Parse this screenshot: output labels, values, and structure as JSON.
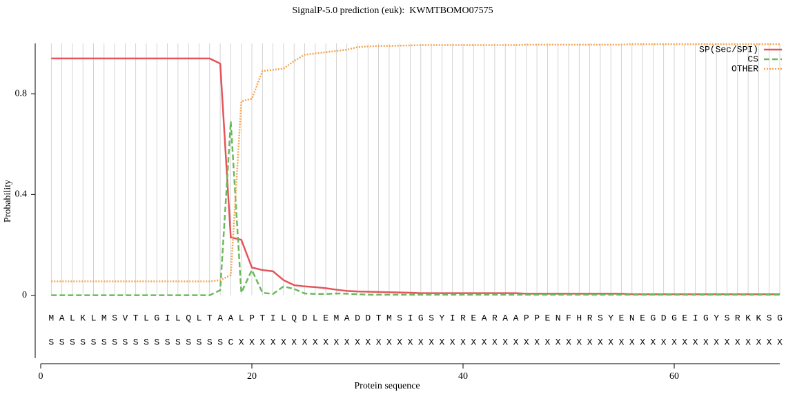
{
  "chart_data": {
    "type": "line",
    "title": "SignalP-5.0 prediction (euk):  KWMTBOMO07575",
    "xlabel": "Protein sequence",
    "ylabel": "Probability",
    "x": [
      1,
      2,
      3,
      4,
      5,
      6,
      7,
      8,
      9,
      10,
      11,
      12,
      13,
      14,
      15,
      16,
      17,
      18,
      19,
      20,
      21,
      22,
      23,
      24,
      25,
      26,
      27,
      28,
      29,
      30,
      31,
      32,
      33,
      34,
      35,
      36,
      37,
      38,
      39,
      40,
      41,
      42,
      43,
      44,
      45,
      46,
      47,
      48,
      49,
      50,
      51,
      52,
      53,
      54,
      55,
      56,
      57,
      58,
      59,
      60,
      61,
      62,
      63,
      64,
      65,
      66,
      67,
      68,
      69,
      70
    ],
    "sequence": [
      "M",
      "A",
      "L",
      "K",
      "L",
      "M",
      "S",
      "V",
      "T",
      "L",
      "G",
      "I",
      "L",
      "Q",
      "L",
      "T",
      "A",
      "A",
      "L",
      "P",
      "T",
      "I",
      "L",
      "Q",
      "D",
      "L",
      "E",
      "M",
      "A",
      "D",
      "D",
      "T",
      "M",
      "S",
      "I",
      "G",
      "S",
      "Y",
      "I",
      "R",
      "E",
      "A",
      "R",
      "A",
      "A",
      "P",
      "P",
      "E",
      "N",
      "F",
      "H",
      "R",
      "S",
      "Y",
      "E",
      "N",
      "E",
      "G",
      "D",
      "G",
      "E",
      "I",
      "G",
      "Y",
      "S",
      "R",
      "K",
      "K",
      "S",
      "G"
    ],
    "annotation": [
      "S",
      "S",
      "S",
      "S",
      "S",
      "S",
      "S",
      "S",
      "S",
      "S",
      "S",
      "S",
      "S",
      "S",
      "S",
      "S",
      "S",
      "C",
      "X",
      "X",
      "X",
      "X",
      "X",
      "X",
      "X",
      "X",
      "X",
      "X",
      "X",
      "X",
      "X",
      "X",
      "X",
      "X",
      "X",
      "X",
      "X",
      "X",
      "X",
      "X",
      "X",
      "X",
      "X",
      "X",
      "X",
      "X",
      "X",
      "X",
      "X",
      "X",
      "X",
      "X",
      "X",
      "X",
      "X",
      "X",
      "X",
      "X",
      "X",
      "X",
      "X",
      "X",
      "X",
      "X",
      "X",
      "X",
      "X",
      "X",
      "X",
      "X"
    ],
    "series": [
      {
        "name": "SP(Sec/SPI)",
        "color": "#e3555a",
        "dash": "solid",
        "values": [
          0.94,
          0.94,
          0.94,
          0.94,
          0.94,
          0.94,
          0.94,
          0.94,
          0.94,
          0.94,
          0.94,
          0.94,
          0.94,
          0.94,
          0.94,
          0.94,
          0.92,
          0.23,
          0.22,
          0.11,
          0.1,
          0.095,
          0.06,
          0.04,
          0.035,
          0.032,
          0.028,
          0.022,
          0.017,
          0.015,
          0.014,
          0.013,
          0.012,
          0.011,
          0.01,
          0.008,
          0.008,
          0.008,
          0.008,
          0.008,
          0.008,
          0.008,
          0.008,
          0.008,
          0.008,
          0.006,
          0.006,
          0.006,
          0.006,
          0.006,
          0.006,
          0.006,
          0.006,
          0.006,
          0.006,
          0.004,
          0.004,
          0.004,
          0.004,
          0.004,
          0.004,
          0.004,
          0.004,
          0.004,
          0.004,
          0.004,
          0.004,
          0.004,
          0.004,
          0.004
        ]
      },
      {
        "name": "CS",
        "color": "#6aba5c",
        "dash": "dashed",
        "values": [
          0,
          0,
          0,
          0,
          0,
          0,
          0,
          0,
          0,
          0,
          0,
          0,
          0,
          0,
          0,
          0,
          0.02,
          0.69,
          0.01,
          0.1,
          0.01,
          0.005,
          0.035,
          0.025,
          0.007,
          0.005,
          0.005,
          0.007,
          0.006,
          0.004,
          0.002,
          0.002,
          0.002,
          0.002,
          0.002,
          0.002,
          0.002,
          0.002,
          0.002,
          0.002,
          0.002,
          0.002,
          0.002,
          0.002,
          0.002,
          0.002,
          0.002,
          0.002,
          0.002,
          0.002,
          0.002,
          0.002,
          0.002,
          0.002,
          0.002,
          0.002,
          0.002,
          0.002,
          0.002,
          0.002,
          0.002,
          0.002,
          0.002,
          0.002,
          0.002,
          0.002,
          0.002,
          0.002,
          0.002,
          0.002
        ]
      },
      {
        "name": "OTHER",
        "color": "#f5a24e",
        "dash": "dotted",
        "values": [
          0.055,
          0.055,
          0.055,
          0.055,
          0.055,
          0.055,
          0.055,
          0.055,
          0.055,
          0.055,
          0.055,
          0.055,
          0.055,
          0.055,
          0.055,
          0.055,
          0.06,
          0.08,
          0.77,
          0.78,
          0.89,
          0.895,
          0.9,
          0.93,
          0.955,
          0.96,
          0.965,
          0.97,
          0.975,
          0.985,
          0.988,
          0.99,
          0.99,
          0.991,
          0.992,
          0.993,
          0.993,
          0.993,
          0.993,
          0.993,
          0.993,
          0.993,
          0.993,
          0.993,
          0.993,
          0.995,
          0.995,
          0.995,
          0.995,
          0.995,
          0.995,
          0.995,
          0.995,
          0.995,
          0.995,
          0.997,
          0.997,
          0.997,
          0.997,
          0.997,
          0.997,
          0.997,
          0.997,
          0.997,
          0.997,
          0.997,
          0.997,
          0.997,
          0.997,
          0.997
        ]
      }
    ],
    "xlim": [
      0,
      70
    ],
    "xticks": [
      0,
      20,
      40,
      60
    ],
    "ylim": [
      -0.25,
      1.0
    ],
    "yticks": [
      0,
      0.4,
      0.8
    ],
    "grid": true,
    "legend": "top-right"
  }
}
